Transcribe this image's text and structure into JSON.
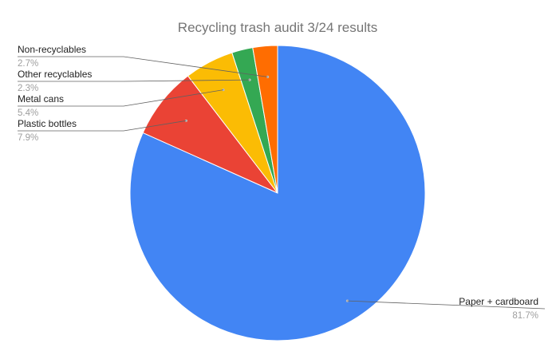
{
  "chart_data": {
    "type": "pie",
    "title": "Recycling trash audit 3/24 results",
    "slices": [
      {
        "label": "Paper + cardboard",
        "value": 81.7,
        "value_label": "81.7%",
        "color": "#4285f4"
      },
      {
        "label": "Plastic bottles",
        "value": 7.9,
        "value_label": "7.9%",
        "color": "#ea4335"
      },
      {
        "label": "Metal cans",
        "value": 5.4,
        "value_label": "5.4%",
        "color": "#fbbc04"
      },
      {
        "label": "Other recyclables",
        "value": 2.3,
        "value_label": "2.3%",
        "color": "#34a853"
      },
      {
        "label": "Non-recyclables",
        "value": 2.7,
        "value_label": "2.7%",
        "color": "#ff6d01"
      }
    ],
    "legend": "labels on slices with leader lines"
  }
}
